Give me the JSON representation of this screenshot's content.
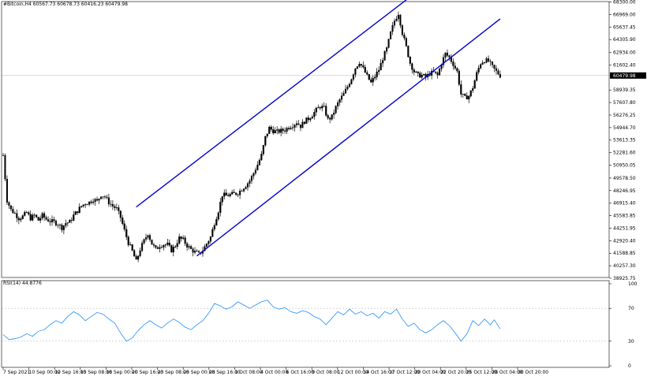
{
  "chart_data": [
    {
      "type": "candlestick",
      "symbol_header": "#Bitcoin,H4  60567.73 60678.73 60416.23 60479.98",
      "y_ticks": [
        "68300.00",
        "66969.00",
        "65637.45",
        "64305.90",
        "62934.00",
        "61602.40",
        "58939.35",
        "57607.80",
        "56276.25",
        "54944.70",
        "53613.35",
        "52281.60",
        "50950.05",
        "49578.50",
        "48246.95",
        "46915.40",
        "45583.85",
        "44251.95",
        "42920.40",
        "41588.85",
        "40257.30",
        "38925.75"
      ],
      "ylim": [
        38925.75,
        68300.0
      ],
      "current_price": "60479.98",
      "x_labels": [
        "7 Sep 2021",
        "10 Sep 00:00",
        "12 Sep 16:00",
        "15 Sep 08:00",
        "18 Sep 00:00",
        "20 Sep 16:00",
        "23 Sep 08:00",
        "26 Sep 00:00",
        "28 Sep 16:00",
        "1 Oct 08:00",
        "4 Oct 00:00",
        "6 Oct 16:00",
        "9 Oct 08:00",
        "12 Oct 00:00",
        "14 Oct 16:00",
        "17 Oct 12:00",
        "20 Oct 04:00",
        "22 Oct 20:00",
        "25 Oct 12:00",
        "28 Oct 04:00",
        "30 Oct 20:00"
      ],
      "close_path": [
        [
          0,
          52000
        ],
        [
          2,
          47200
        ],
        [
          4,
          46200
        ],
        [
          6,
          45800
        ],
        [
          8,
          45300
        ],
        [
          10,
          45500
        ],
        [
          12,
          45900
        ],
        [
          14,
          45300
        ],
        [
          16,
          45600
        ],
        [
          18,
          45100
        ],
        [
          20,
          45600
        ],
        [
          22,
          45200
        ],
        [
          24,
          45000
        ],
        [
          26,
          44900
        ],
        [
          28,
          44700
        ],
        [
          30,
          44300
        ],
        [
          32,
          44800
        ],
        [
          34,
          44900
        ],
        [
          36,
          45600
        ],
        [
          38,
          46100
        ],
        [
          40,
          46600
        ],
        [
          42,
          46900
        ],
        [
          44,
          47000
        ],
        [
          46,
          47300
        ],
        [
          48,
          47100
        ],
        [
          50,
          47800
        ],
        [
          52,
          47600
        ],
        [
          54,
          47000
        ],
        [
          56,
          46600
        ],
        [
          58,
          46300
        ],
        [
          60,
          45400
        ],
        [
          62,
          44000
        ],
        [
          64,
          42700
        ],
        [
          66,
          41800
        ],
        [
          68,
          40700
        ],
        [
          70,
          42000
        ],
        [
          72,
          42900
        ],
        [
          74,
          43700
        ],
        [
          76,
          42600
        ],
        [
          78,
          42000
        ],
        [
          80,
          42400
        ],
        [
          82,
          42500
        ],
        [
          84,
          42500
        ],
        [
          86,
          41900
        ],
        [
          88,
          42400
        ],
        [
          90,
          43200
        ],
        [
          92,
          43000
        ],
        [
          94,
          42400
        ],
        [
          96,
          42000
        ],
        [
          98,
          41700
        ],
        [
          100,
          41500
        ],
        [
          102,
          41900
        ],
        [
          104,
          42600
        ],
        [
          106,
          43300
        ],
        [
          108,
          44800
        ],
        [
          110,
          46100
        ],
        [
          112,
          47800
        ],
        [
          114,
          47700
        ],
        [
          116,
          47800
        ],
        [
          118,
          47900
        ],
        [
          120,
          48000
        ],
        [
          122,
          48400
        ],
        [
          124,
          48800
        ],
        [
          126,
          49300
        ],
        [
          128,
          50100
        ],
        [
          130,
          51000
        ],
        [
          132,
          52000
        ],
        [
          134,
          53900
        ],
        [
          136,
          54900
        ],
        [
          138,
          54600
        ],
        [
          140,
          54500
        ],
        [
          142,
          54600
        ],
        [
          144,
          54700
        ],
        [
          146,
          55000
        ],
        [
          148,
          55200
        ],
        [
          150,
          55500
        ],
        [
          152,
          55100
        ],
        [
          154,
          55600
        ],
        [
          156,
          55900
        ],
        [
          158,
          56300
        ],
        [
          160,
          56800
        ],
        [
          162,
          57200
        ],
        [
          164,
          57000
        ],
        [
          166,
          55800
        ],
        [
          168,
          56100
        ],
        [
          170,
          57100
        ],
        [
          172,
          57900
        ],
        [
          174,
          58500
        ],
        [
          176,
          59300
        ],
        [
          178,
          60200
        ],
        [
          180,
          61300
        ],
        [
          182,
          61900
        ],
        [
          184,
          61200
        ],
        [
          186,
          60400
        ],
        [
          188,
          59700
        ],
        [
          190,
          60400
        ],
        [
          192,
          61100
        ],
        [
          194,
          62300
        ],
        [
          196,
          63300
        ],
        [
          198,
          65000
        ],
        [
          200,
          66300
        ],
        [
          202,
          67100
        ],
        [
          204,
          65000
        ],
        [
          206,
          63500
        ],
        [
          208,
          61800
        ],
        [
          210,
          60900
        ],
        [
          212,
          60500
        ],
        [
          214,
          60500
        ],
        [
          216,
          60300
        ],
        [
          218,
          60700
        ],
        [
          220,
          60800
        ],
        [
          222,
          60500
        ],
        [
          224,
          61800
        ],
        [
          226,
          62800
        ],
        [
          228,
          62400
        ],
        [
          230,
          61700
        ],
        [
          232,
          60900
        ],
        [
          234,
          58500
        ],
        [
          236,
          58100
        ],
        [
          238,
          58300
        ],
        [
          240,
          59200
        ],
        [
          242,
          60700
        ],
        [
          244,
          61800
        ],
        [
          246,
          62100
        ],
        [
          248,
          62000
        ],
        [
          250,
          61400
        ],
        [
          252,
          60900
        ],
        [
          254,
          60480
        ]
      ],
      "channel": [
        {
          "name": "",
          "from": [
            68,
            46500
          ],
          "to": [
            209,
            69000
          ],
          "color": "#0000cc"
        },
        {
          "name": "",
          "from": [
            99,
            41300
          ],
          "to": [
            254,
            66500
          ],
          "color": "#0000cc"
        }
      ],
      "candle_up_color": "#000000",
      "candle_down_color": "#000000",
      "grid": true,
      "crosshair_price": 60479.98
    },
    {
      "type": "line",
      "indicator_header": "RSI(14) 44.8776",
      "y_ticks": [
        "100",
        "70",
        "30",
        "0"
      ],
      "ylim": [
        0,
        100
      ],
      "line_color": "#1e90ff",
      "levels": [
        70,
        30
      ],
      "series": [
        {
          "name": "",
          "values": [
            [
              0,
              38
            ],
            [
              3,
              32
            ],
            [
              6,
              33
            ],
            [
              9,
              35
            ],
            [
              12,
              39
            ],
            [
              15,
              36
            ],
            [
              18,
              42
            ],
            [
              21,
              44
            ],
            [
              24,
              50
            ],
            [
              27,
              55
            ],
            [
              30,
              52
            ],
            [
              33,
              60
            ],
            [
              36,
              66
            ],
            [
              39,
              62
            ],
            [
              42,
              55
            ],
            [
              45,
              60
            ],
            [
              48,
              65
            ],
            [
              51,
              63
            ],
            [
              54,
              57
            ],
            [
              57,
              52
            ],
            [
              60,
              40
            ],
            [
              63,
              30
            ],
            [
              66,
              34
            ],
            [
              69,
              43
            ],
            [
              72,
              50
            ],
            [
              75,
              55
            ],
            [
              78,
              50
            ],
            [
              81,
              46
            ],
            [
              84,
              52
            ],
            [
              87,
              57
            ],
            [
              90,
              53
            ],
            [
              93,
              47
            ],
            [
              96,
              44
            ],
            [
              99,
              50
            ],
            [
              102,
              55
            ],
            [
              105,
              64
            ],
            [
              108,
              76
            ],
            [
              111,
              73
            ],
            [
              114,
              69
            ],
            [
              117,
              72
            ],
            [
              120,
              78
            ],
            [
              123,
              74
            ],
            [
              126,
              70
            ],
            [
              129,
              74
            ],
            [
              132,
              78
            ],
            [
              135,
              80
            ],
            [
              138,
              72
            ],
            [
              141,
              69
            ],
            [
              144,
              71
            ],
            [
              147,
              66
            ],
            [
              150,
              64
            ],
            [
              153,
              67
            ],
            [
              156,
              65
            ],
            [
              159,
              60
            ],
            [
              162,
              57
            ],
            [
              165,
              50
            ],
            [
              168,
              58
            ],
            [
              171,
              66
            ],
            [
              174,
              62
            ],
            [
              177,
              69
            ],
            [
              180,
              63
            ],
            [
              183,
              66
            ],
            [
              186,
              61
            ],
            [
              189,
              64
            ],
            [
              192,
              58
            ],
            [
              195,
              66
            ],
            [
              198,
              63
            ],
            [
              201,
              69
            ],
            [
              204,
              57
            ],
            [
              207,
              48
            ],
            [
              210,
              52
            ],
            [
              213,
              44
            ],
            [
              216,
              40
            ],
            [
              219,
              44
            ],
            [
              222,
              50
            ],
            [
              225,
              55
            ],
            [
              228,
              49
            ],
            [
              231,
              40
            ],
            [
              234,
              30
            ],
            [
              237,
              39
            ],
            [
              240,
              55
            ],
            [
              243,
              49
            ],
            [
              246,
              57
            ],
            [
              249,
              50
            ],
            [
              251,
              56
            ],
            [
              254,
              45
            ]
          ]
        }
      ],
      "grid": true
    }
  ]
}
